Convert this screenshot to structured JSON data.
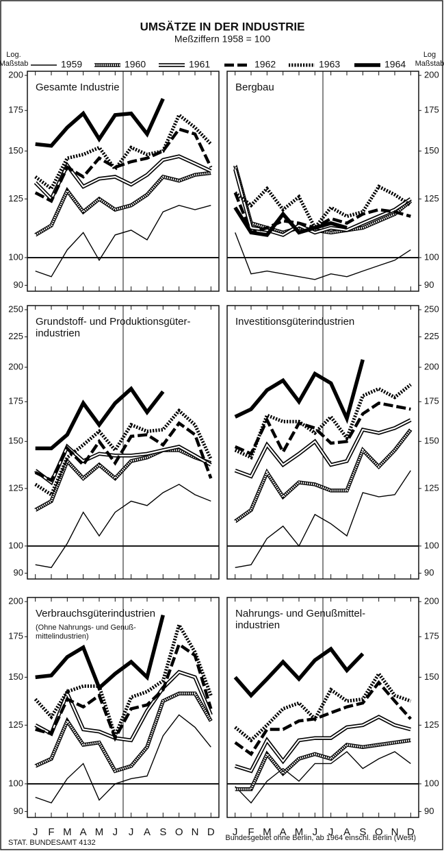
{
  "title": "UMSÄTZE IN DER INDUSTRIE",
  "subtitle": "Meßziffern 1958 = 100",
  "y_axis_label_left": [
    "Log.",
    "Maßstab"
  ],
  "y_axis_label_right": [
    "Log",
    "Maßstab"
  ],
  "source": "STAT. BUNDESAMT 4132",
  "footnote": "Bundesgebiet ohne Berlin, ab 1964 einschl. Berlin (West)",
  "chart_data": [
    {
      "type": "line",
      "title": [
        "Gesamte Industrie"
      ],
      "axis_side": "left",
      "log": true,
      "hline": 100,
      "categories": [
        "J",
        "F",
        "M",
        "A",
        "M",
        "J",
        "J",
        "A",
        "S",
        "O",
        "N",
        "D"
      ],
      "ylim": [
        88,
        200
      ],
      "yticks": [
        90,
        100,
        125,
        150,
        175,
        200
      ],
      "series": [
        {
          "name": "1959",
          "color": "#000",
          "style": "thin",
          "values": [
            95,
            93,
            103,
            110,
            99,
            109,
            111,
            107,
            119,
            122,
            120,
            122
          ]
        },
        {
          "name": "1960",
          "color": "#000",
          "style": "hatched",
          "values": [
            109,
            113,
            129,
            119,
            125,
            120,
            122,
            127,
            136,
            134,
            137,
            138
          ]
        },
        {
          "name": "1961",
          "color": "#000",
          "style": "double",
          "values": [
            133,
            125,
            142,
            131,
            135,
            136,
            132,
            137,
            145,
            147,
            143,
            139
          ]
        },
        {
          "name": "1962",
          "color": "#000",
          "style": "dashed",
          "values": [
            128,
            124,
            141,
            136,
            146,
            141,
            144,
            146,
            150,
            163,
            160,
            141
          ]
        },
        {
          "name": "1963",
          "color": "#000",
          "style": "dotted",
          "values": [
            136,
            130,
            146,
            148,
            152,
            140,
            152,
            148,
            150,
            172,
            164,
            154
          ]
        },
        {
          "name": "1964",
          "color": "#000",
          "style": "thick",
          "values": [
            154,
            153,
            164,
            173,
            157,
            172,
            173,
            160,
            183,
            null,
            null,
            null
          ]
        }
      ]
    },
    {
      "type": "line",
      "title": [
        "Bergbau"
      ],
      "axis_side": "right",
      "log": true,
      "hline": 100,
      "categories": [
        "J",
        "F",
        "M",
        "A",
        "M",
        "J",
        "J",
        "A",
        "S",
        "O",
        "N",
        "D"
      ],
      "ylim": [
        88,
        200
      ],
      "yticks": [
        90,
        100,
        125,
        150,
        175,
        200
      ],
      "series": [
        {
          "name": "1959",
          "color": "#000",
          "style": "thin",
          "values": [
            110,
            94,
            95,
            94,
            93,
            92,
            94,
            93,
            95,
            97,
            99,
            103
          ]
        },
        {
          "name": "1960",
          "color": "#000",
          "style": "hatched",
          "values": [
            142,
            114,
            112,
            110,
            112,
            111,
            110,
            111,
            112,
            115,
            118,
            124
          ]
        },
        {
          "name": "1961",
          "color": "#000",
          "style": "double",
          "values": [
            140,
            112,
            111,
            109,
            113,
            110,
            112,
            111,
            114,
            117,
            120,
            125
          ]
        },
        {
          "name": "1962",
          "color": "#000",
          "style": "dashed",
          "values": [
            128,
            110,
            112,
            115,
            114,
            112,
            116,
            114,
            118,
            120,
            119,
            117
          ]
        },
        {
          "name": "1963",
          "color": "#000",
          "style": "dotted",
          "values": [
            128,
            122,
            130,
            120,
            126,
            112,
            121,
            117,
            119,
            131,
            127,
            122
          ]
        },
        {
          "name": "1964",
          "color": "#000",
          "style": "thick",
          "values": [
            121,
            110,
            109,
            118,
            110,
            112,
            114,
            112,
            null,
            null,
            null,
            null
          ]
        }
      ]
    },
    {
      "type": "line",
      "title": [
        "Grundstoff- und Produktionsgüter-",
        "industrien"
      ],
      "axis_side": "left",
      "log": true,
      "hline": 100,
      "categories": [
        "J",
        "F",
        "M",
        "A",
        "M",
        "J",
        "J",
        "A",
        "S",
        "O",
        "N",
        "D"
      ],
      "ylim": [
        88,
        250
      ],
      "yticks": [
        90,
        100,
        125,
        150,
        175,
        200,
        225,
        250
      ],
      "series": [
        {
          "name": "1959",
          "color": "#000",
          "style": "thin",
          "values": [
            93,
            92,
            101,
            114,
            104,
            114,
            119,
            117,
            123,
            127,
            122,
            119
          ]
        },
        {
          "name": "1960",
          "color": "#000",
          "style": "hatched",
          "values": [
            115,
            119,
            139,
            130,
            137,
            130,
            139,
            141,
            145,
            145,
            141,
            138
          ]
        },
        {
          "name": "1961",
          "color": "#000",
          "style": "double",
          "values": [
            134,
            128,
            147,
            139,
            143,
            142,
            142,
            143,
            145,
            147,
            142,
            137
          ]
        },
        {
          "name": "1962",
          "color": "#000",
          "style": "dashed",
          "values": [
            133,
            129,
            146,
            137,
            150,
            138,
            153,
            154,
            148,
            161,
            154,
            130
          ]
        },
        {
          "name": "1963",
          "color": "#000",
          "style": "dotted",
          "values": [
            127,
            122,
            141,
            148,
            156,
            145,
            160,
            156,
            157,
            169,
            160,
            140
          ]
        },
        {
          "name": "1964",
          "color": "#000",
          "style": "thick",
          "values": [
            146,
            146,
            154,
            174,
            160,
            174,
            184,
            168,
            182,
            null,
            null,
            null
          ]
        }
      ]
    },
    {
      "type": "line",
      "title": [
        "Investitionsgüterindustrien"
      ],
      "axis_side": "right",
      "log": true,
      "hline": 100,
      "categories": [
        "J",
        "F",
        "M",
        "A",
        "M",
        "J",
        "J",
        "A",
        "S",
        "O",
        "N",
        "D"
      ],
      "ylim": [
        88,
        250
      ],
      "yticks": [
        90,
        100,
        125,
        150,
        175,
        200,
        225,
        250
      ],
      "series": [
        {
          "name": "1959",
          "color": "#000",
          "style": "thin",
          "values": [
            92,
            93,
            103,
            108,
            100,
            113,
            109,
            104,
            123,
            121,
            122,
            134
          ]
        },
        {
          "name": "1960",
          "color": "#000",
          "style": "hatched",
          "values": [
            110,
            115,
            133,
            121,
            128,
            127,
            124,
            124,
            145,
            136,
            145,
            157
          ]
        },
        {
          "name": "1961",
          "color": "#000",
          "style": "double",
          "values": [
            134,
            131,
            148,
            137,
            143,
            150,
            137,
            139,
            157,
            155,
            158,
            163
          ]
        },
        {
          "name": "1962",
          "color": "#000",
          "style": "dashed",
          "values": [
            147,
            143,
            163,
            144,
            161,
            158,
            149,
            150,
            167,
            174,
            172,
            170
          ]
        },
        {
          "name": "1963",
          "color": "#000",
          "style": "dotted",
          "values": [
            145,
            141,
            166,
            162,
            162,
            155,
            165,
            152,
            179,
            184,
            178,
            187
          ]
        },
        {
          "name": "1964",
          "color": "#000",
          "style": "thick",
          "values": [
            165,
            170,
            183,
            190,
            175,
            195,
            188,
            164,
            206,
            null,
            null,
            null
          ]
        }
      ]
    },
    {
      "type": "line",
      "title": [
        "Verbrauchsgüterindustrien"
      ],
      "note": [
        "(Ohne Nahrungs- und Genuß-",
        "mittelindustrien)"
      ],
      "axis_side": "left",
      "log": true,
      "hline": 100,
      "categories": [
        "J",
        "F",
        "M",
        "A",
        "M",
        "J",
        "J",
        "A",
        "S",
        "O",
        "N",
        "D"
      ],
      "ylim": [
        88,
        200
      ],
      "yticks": [
        90,
        100,
        125,
        150,
        175,
        200
      ],
      "series": [
        {
          "name": "1959",
          "color": "#000",
          "style": "thin",
          "values": [
            95,
            93,
            102,
            108,
            94,
            100,
            102,
            103,
            120,
            130,
            124,
            115
          ]
        },
        {
          "name": "1960",
          "color": "#000",
          "style": "hatched",
          "values": [
            107,
            110,
            127,
            116,
            117,
            105,
            107,
            115,
            137,
            141,
            141,
            127
          ]
        },
        {
          "name": "1961",
          "color": "#000",
          "style": "double",
          "values": [
            125,
            121,
            141,
            123,
            122,
            119,
            118,
            132,
            144,
            153,
            150,
            130
          ]
        },
        {
          "name": "1962",
          "color": "#000",
          "style": "dashed",
          "values": [
            123,
            121,
            138,
            134,
            140,
            119,
            133,
            135,
            143,
            170,
            163,
            133
          ]
        },
        {
          "name": "1963",
          "color": "#000",
          "style": "dotted",
          "values": [
            138,
            129,
            142,
            145,
            145,
            120,
            139,
            142,
            148,
            183,
            165,
            140
          ]
        },
        {
          "name": "1964",
          "color": "#000",
          "style": "thick",
          "values": [
            150,
            151,
            162,
            168,
            144,
            152,
            159,
            150,
            190,
            null,
            null,
            null
          ]
        }
      ]
    },
    {
      "type": "line",
      "title": [
        "Nahrungs- und Genußmittel-",
        "industrien"
      ],
      "axis_side": "right",
      "log": true,
      "hline": 100,
      "categories": [
        "J",
        "F",
        "M",
        "A",
        "M",
        "J",
        "J",
        "A",
        "S",
        "O",
        "N",
        "D"
      ],
      "ylim": [
        88,
        200
      ],
      "yticks": [
        90,
        100,
        125,
        150,
        175,
        200
      ],
      "series": [
        {
          "name": "1959",
          "color": "#000",
          "style": "thin",
          "values": [
            99,
            93,
            101,
            106,
            101,
            108,
            108,
            113,
            106,
            110,
            113,
            108
          ]
        },
        {
          "name": "1960",
          "color": "#000",
          "style": "hatched",
          "values": [
            98,
            98,
            112,
            104,
            110,
            112,
            110,
            116,
            115,
            116,
            117,
            118
          ]
        },
        {
          "name": "1961",
          "color": "#000",
          "style": "double",
          "values": [
            107,
            105,
            118,
            109,
            118,
            119,
            119,
            124,
            125,
            129,
            125,
            123
          ]
        },
        {
          "name": "1962",
          "color": "#000",
          "style": "dashed",
          "values": [
            117,
            112,
            123,
            123,
            127,
            128,
            131,
            134,
            136,
            147,
            137,
            128
          ]
        },
        {
          "name": "1963",
          "color": "#000",
          "style": "dotted",
          "values": [
            124,
            118,
            125,
            133,
            136,
            128,
            143,
            137,
            138,
            152,
            140,
            137
          ]
        },
        {
          "name": "1964",
          "color": "#000",
          "style": "thick",
          "values": [
            150,
            140,
            149,
            159,
            149,
            160,
            167,
            154,
            164,
            null,
            null,
            null
          ]
        }
      ]
    }
  ]
}
